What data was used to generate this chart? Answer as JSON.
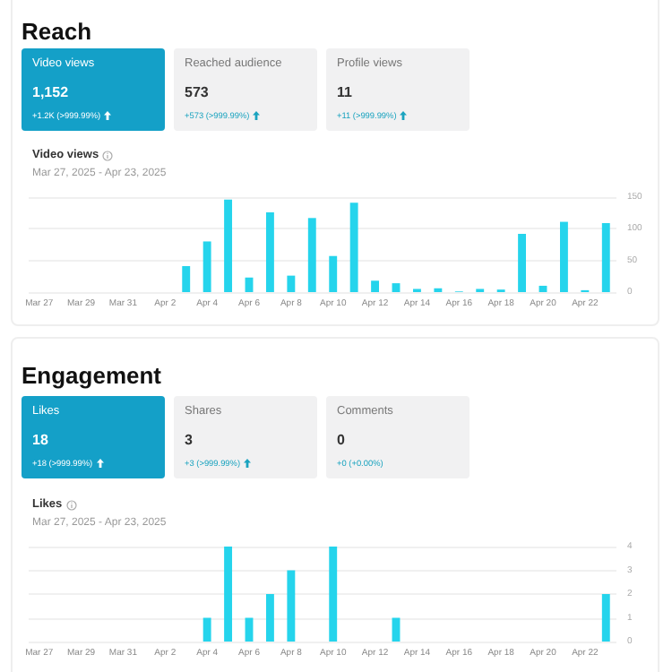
{
  "chart_data": [
    {
      "type": "other",
      "title": "Reach",
      "annotations": [
        "Video views",
        "1,152",
        "+1.2K (>999.99%)",
        "Reached audience",
        "573",
        "+573 (>999.99%)",
        "Profile views",
        "11",
        "+11 (>999.99%)"
      ]
    },
    {
      "type": "bar",
      "title": "Video views",
      "subtitle": "Mar 27, 2025 - Apr 23, 2025",
      "categories": [
        "Mar 27",
        null,
        "Mar 29",
        null,
        "Mar 31",
        null,
        "Apr 2",
        null,
        "Apr 4",
        null,
        "Apr 6",
        null,
        "Apr 8",
        null,
        "Apr 10",
        null,
        "Apr 12",
        null,
        "Apr 14",
        null,
        "Apr 16",
        null,
        "Apr 18",
        null,
        "Apr 20",
        null,
        "Apr 22",
        null
      ],
      "values": [
        0,
        0,
        0,
        0,
        0,
        0,
        0,
        41,
        80,
        146,
        23,
        126,
        26,
        117,
        57,
        141,
        18,
        14,
        5,
        6,
        1,
        5,
        4,
        92,
        10,
        111,
        3,
        109
      ],
      "color": "#25d4ec",
      "ylim": [
        0,
        150
      ],
      "yticks": [
        0,
        50,
        100,
        150
      ],
      "grid": "y"
    },
    {
      "type": "other",
      "title": "Engagement",
      "annotations": [
        "Likes",
        "18",
        "+18 (>999.99%)",
        "Shares",
        "3",
        "+3 (>999.99%)",
        "Comments",
        "0",
        "+0 (+0.00%)"
      ]
    },
    {
      "type": "bar",
      "title": "Likes",
      "subtitle": "Mar 27, 2025 - Apr 23, 2025",
      "categories": [
        "Mar 27",
        null,
        "Mar 29",
        null,
        "Mar 31",
        null,
        "Apr 2",
        null,
        "Apr 4",
        null,
        "Apr 6",
        null,
        "Apr 8",
        null,
        "Apr 10",
        null,
        "Apr 12",
        null,
        "Apr 14",
        null,
        "Apr 16",
        null,
        "Apr 18",
        null,
        "Apr 20",
        null,
        "Apr 22",
        null
      ],
      "values": [
        0,
        0,
        0,
        0,
        0,
        0,
        0,
        0,
        1,
        4,
        1,
        2,
        3,
        0,
        4,
        0,
        0,
        1,
        0,
        0,
        0,
        0,
        0,
        0,
        0,
        0,
        0,
        2
      ],
      "color": "#25d4ec",
      "ylim": [
        0,
        4
      ],
      "yticks": [
        0,
        1,
        2,
        3,
        4
      ],
      "grid": "y"
    }
  ]
}
